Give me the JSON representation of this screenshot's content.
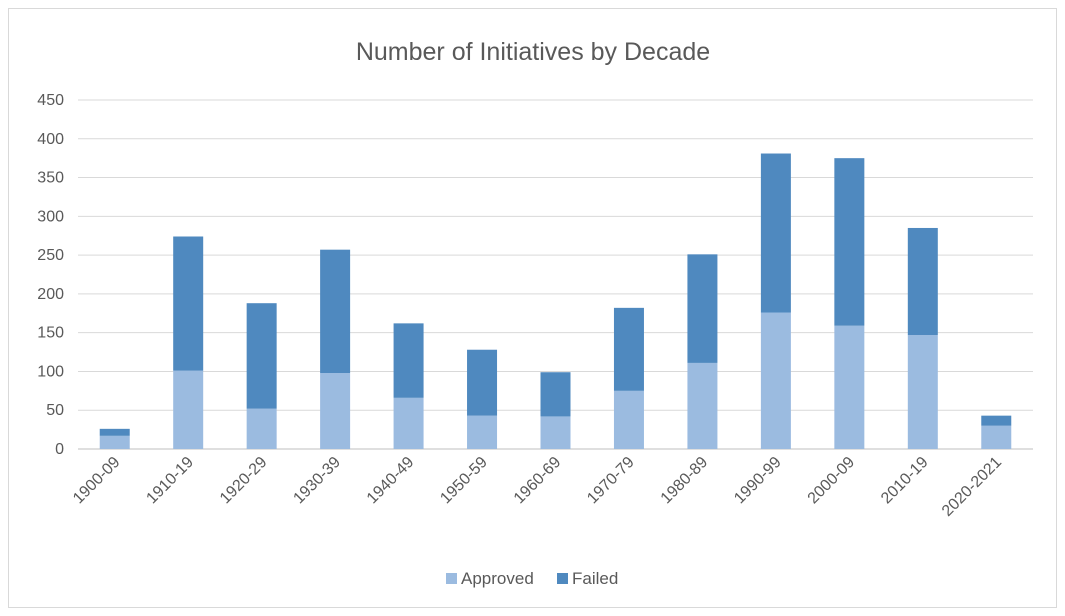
{
  "chart_data": {
    "type": "bar",
    "stacked": true,
    "title": "Number of Initiatives by Decade",
    "xlabel": "",
    "ylabel": "",
    "ylim": [
      0,
      450
    ],
    "yticks": [
      0,
      50,
      100,
      150,
      200,
      250,
      300,
      350,
      400,
      450
    ],
    "grid": true,
    "legend": "bottom",
    "categories": [
      "1900-09",
      "1910-19",
      "1920-29",
      "1930-39",
      "1940-49",
      "1950-59",
      "1960-69",
      "1970-79",
      "1980-89",
      "1990-99",
      "2000-09",
      "2010-19",
      "2020-2021"
    ],
    "series": [
      {
        "name": "Approved",
        "color": "#9bbbe0",
        "values": [
          17,
          101,
          52,
          98,
          66,
          43,
          42,
          75,
          111,
          176,
          159,
          147,
          30
        ]
      },
      {
        "name": "Failed",
        "color": "#4f89bf",
        "values": [
          9,
          173,
          136,
          159,
          96,
          85,
          57,
          107,
          140,
          205,
          216,
          138,
          13
        ]
      }
    ]
  }
}
